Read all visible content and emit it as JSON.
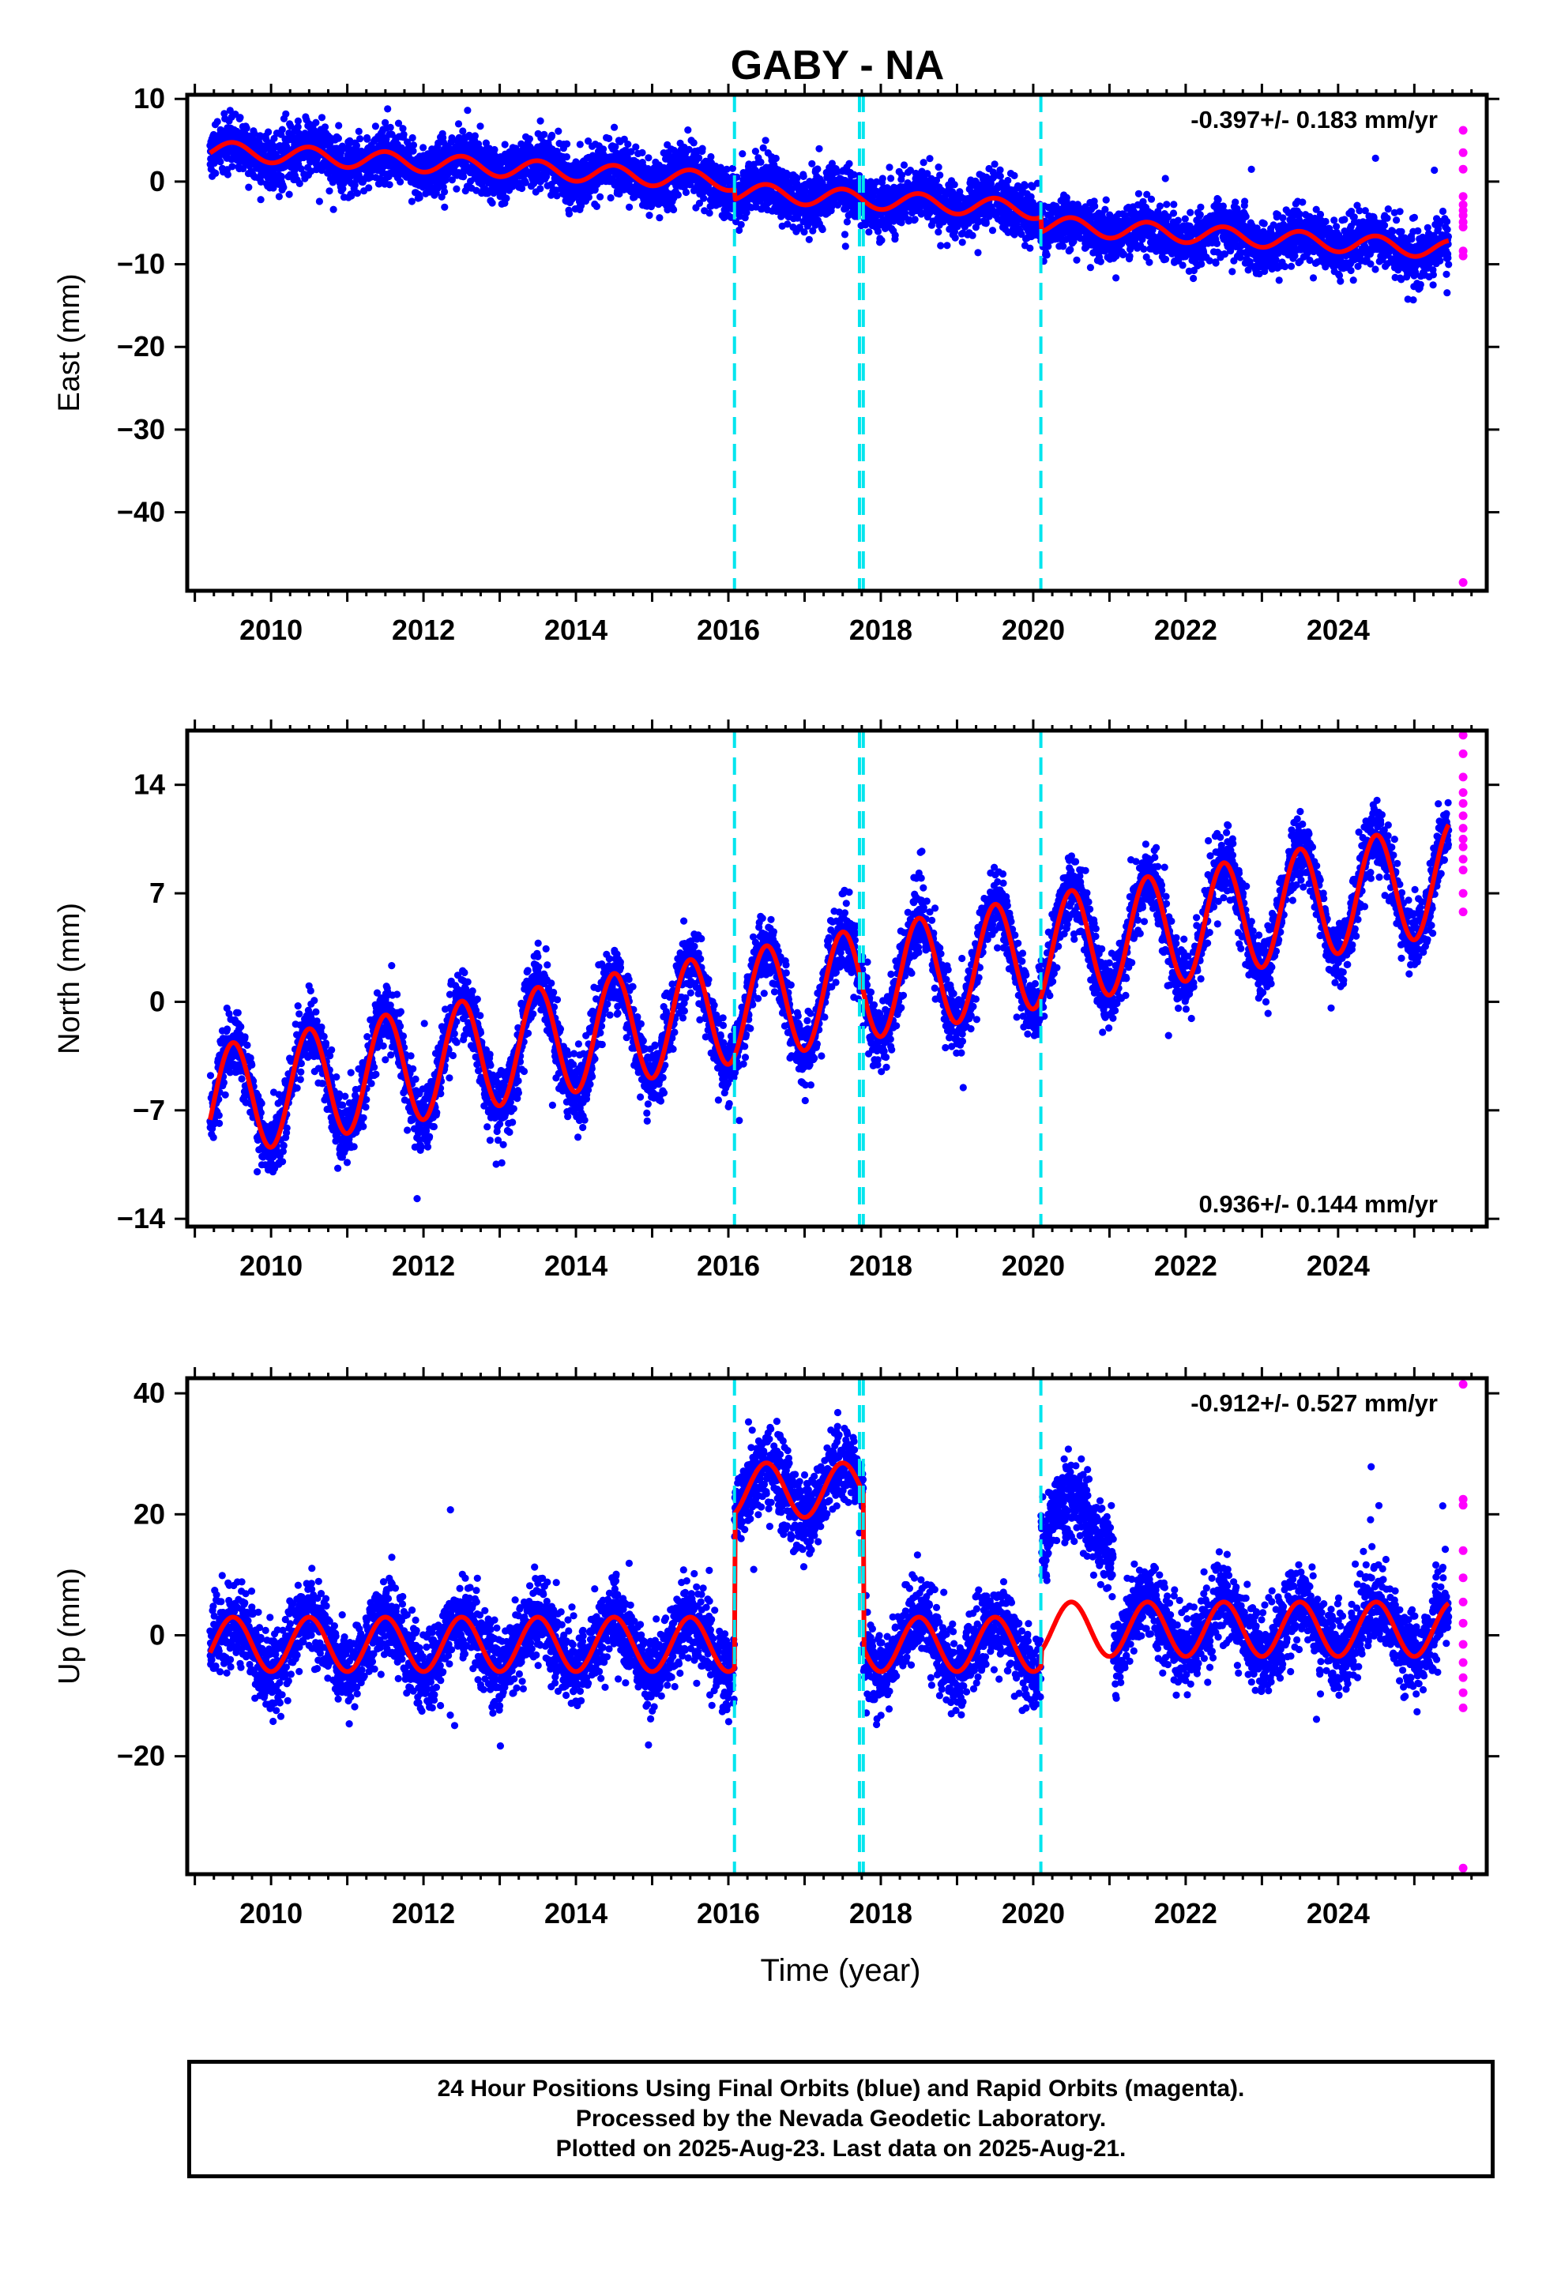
{
  "chart_data": {
    "type": "scatter",
    "title": "GABY - NA",
    "xlabel": "Time (year)",
    "xlim": [
      2008.9,
      2025.95
    ],
    "x_ticks": [
      2010,
      2012,
      2014,
      2016,
      2018,
      2020,
      2022,
      2024
    ],
    "x_tick_labels": [
      "2010",
      "2012",
      "2014",
      "2016",
      "2018",
      "2020",
      "2022",
      "2024"
    ],
    "data_start": 2009.2,
    "final_end": 2025.45,
    "rapid_end": 2025.64,
    "offsets": [
      2016.08,
      2017.72,
      2017.77,
      2020.1
    ],
    "colors": {
      "final": "#0000ff",
      "rapid": "#ff00ff",
      "model": "#ff0000",
      "offset": "#00e5ee"
    },
    "legend": [
      "24 Hour Positions Using Final Orbits (blue) and Rapid Orbits (magenta)."
    ],
    "panels": [
      {
        "component": "east",
        "ylabel": "East (mm)",
        "ylim": [
          -49.5,
          10.5
        ],
        "yticks": [
          10,
          0,
          -10,
          -20,
          -30,
          -40
        ],
        "ytick_labels": [
          "10",
          "0",
          "−10",
          "−20",
          "−30",
          "−40"
        ],
        "rate_label": "-0.397+/- 0.183 mm/yr",
        "rate_position": "top-right",
        "trend_start": 3.8,
        "trend_end": -5.2,
        "seasonal_amplitude": 1.1,
        "noise": 1.6,
        "model_steps": [
          {
            "t": 2016.08,
            "dy": -1.2
          },
          {
            "t": 2020.1,
            "dy": -1.8
          }
        ],
        "data_steps": [],
        "rapid_y": [
          6.2,
          3.5,
          1.5,
          -1.8,
          -2.8,
          -3.5,
          -4.1,
          -4.9,
          -5.5,
          -8.4,
          -9.0,
          -48.5
        ]
      },
      {
        "component": "north",
        "ylabel": "North (mm)",
        "ylim": [
          -14.5,
          17.5
        ],
        "yticks": [
          14,
          7,
          0,
          -7,
          -14
        ],
        "ytick_labels": [
          "14",
          "7",
          "0",
          "−7",
          "−14"
        ],
        "rate_label": "0.936+/- 0.144 mm/yr",
        "rate_position": "bottom-right",
        "trend_start": -6.5,
        "trend_end": 8.0,
        "seasonal_amplitude": 3.6,
        "noise": 1.1,
        "model_steps": [],
        "data_steps": [],
        "rapid_y": [
          17.2,
          16.0,
          14.5,
          13.5,
          12.8,
          12.0,
          11.2,
          10.5,
          10.0,
          9.2,
          8.5,
          7.0,
          5.8
        ]
      },
      {
        "component": "up",
        "ylabel": "Up (mm)",
        "ylim": [
          -39.5,
          42.5
        ],
        "yticks": [
          40,
          20,
          0,
          -20
        ],
        "ytick_labels": [
          "40",
          "20",
          "0",
          "−20"
        ],
        "rate_label": "-0.912+/- 0.527 mm/yr",
        "rate_position": "top-right",
        "trend_start": -1.5,
        "trend_end": -1.5,
        "seasonal_amplitude": 4.5,
        "noise": 3.2,
        "model_steps": [
          {
            "t": 2016.08,
            "dy": 25.5
          },
          {
            "t": 2017.77,
            "dy": -25.5
          },
          {
            "t": 2020.1,
            "dy": 2.5
          }
        ],
        "data_steps": [
          {
            "t": 2020.1,
            "dy": 17.5
          },
          {
            "t": 2021.05,
            "dy": -17.5
          }
        ],
        "rapid_y": [
          41.5,
          22.5,
          21.5,
          14.0,
          9.5,
          5.5,
          2.0,
          -1.5,
          -4.5,
          -7.0,
          -9.5,
          -12.0,
          -38.5
        ]
      }
    ]
  },
  "footer": {
    "line1": "24 Hour Positions Using Final Orbits (blue) and Rapid Orbits (magenta).",
    "line2": "Processed by the Nevada Geodetic Laboratory.",
    "line3": "Plotted on 2025-Aug-23. Last data on 2025-Aug-21."
  }
}
